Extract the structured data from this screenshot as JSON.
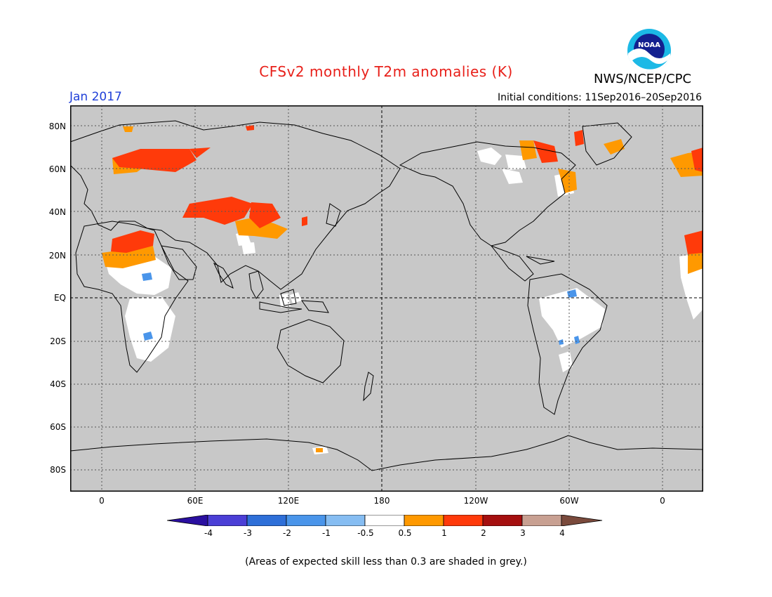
{
  "title": "CFSv2 monthly T2m anomalies (K)",
  "period": "Jan 2017",
  "initial_conditions": "Initial conditions: 11Sep2016–20Sep2016",
  "agency": "NWS/NCEP/CPC",
  "logo_text": "NOAA",
  "footnote": "(Areas of expected skill less than 0.3 are shaded in grey.)",
  "lat_labels": [
    "80N",
    "60N",
    "40N",
    "20N",
    "EQ",
    "20S",
    "40S",
    "60S",
    "80S"
  ],
  "lon_labels": [
    "0",
    "60E",
    "120E",
    "180",
    "120W",
    "60W",
    "0"
  ],
  "colorbar": {
    "labels": [
      "-4",
      "-3",
      "-2",
      "-1",
      "-0.5",
      "0.5",
      "1",
      "2",
      "3",
      "4"
    ],
    "colors": [
      "#2a0fa0",
      "#4b3fd6",
      "#2e6fd8",
      "#4a95ea",
      "#86bdf2",
      "#ffffff",
      "#ff9900",
      "#ff3a0a",
      "#a50f0f",
      "#c8a092",
      "#7a4a3c"
    ]
  },
  "map_colors": {
    "ocean_grey": "#c8c8c8",
    "white": "#ffffff",
    "orange": "#ff9900",
    "red": "#ff3a0a",
    "blue": "#4a95ea",
    "dark_red": "#c01a10"
  }
}
